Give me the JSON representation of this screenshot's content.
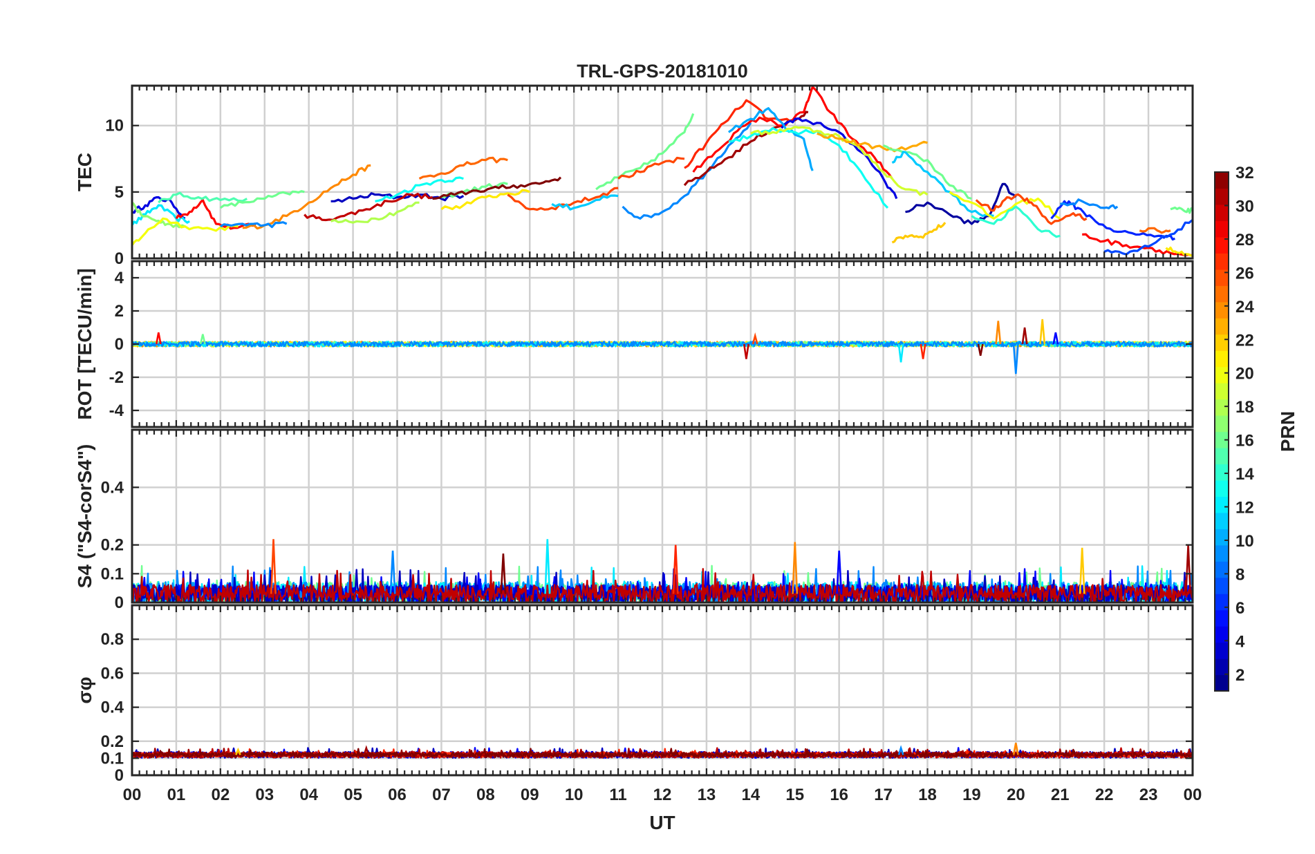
{
  "chart_data": {
    "type": "line",
    "title": "TRL-GPS-20181010",
    "xlabel": "UT",
    "xlim": [
      0,
      24
    ],
    "x_ticks": [
      "00",
      "01",
      "02",
      "03",
      "04",
      "05",
      "06",
      "07",
      "08",
      "09",
      "10",
      "11",
      "12",
      "13",
      "14",
      "15",
      "16",
      "17",
      "18",
      "19",
      "20",
      "21",
      "22",
      "23",
      "00"
    ],
    "grid": true,
    "colorbar": {
      "label": "PRN",
      "colormap": "jet",
      "range": [
        1,
        32
      ],
      "ticks": [
        "2",
        "4",
        "6",
        "8",
        "10",
        "12",
        "14",
        "16",
        "18",
        "20",
        "22",
        "24",
        "26",
        "28",
        "30",
        "32"
      ]
    },
    "panels": [
      {
        "ylabel": "TEC",
        "ylim": [
          0,
          13
        ],
        "y_ticks": [
          "0",
          "5",
          "10"
        ],
        "series": [
          {
            "prn": 4,
            "x": [
              0,
              0.3,
              0.6,
              0.9,
              1.2
            ],
            "y": [
              3.5,
              4,
              4.6,
              4.2,
              3
            ]
          },
          {
            "prn": 12,
            "x": [
              0,
              0.3,
              0.6,
              1,
              1.3
            ],
            "y": [
              2.5,
              3.3,
              4,
              3,
              2.8
            ]
          },
          {
            "prn": 17,
            "x": [
              0,
              0.2,
              0.5,
              0.8,
              1.2
            ],
            "y": [
              4.2,
              3.3,
              2.9,
              2.6,
              2.4
            ]
          },
          {
            "prn": 28,
            "x": [
              1,
              1.3,
              1.6,
              1.9,
              2.3,
              2.8
            ],
            "y": [
              3,
              3.5,
              4.4,
              2.6,
              2.3,
              2.5
            ]
          },
          {
            "prn": 20,
            "x": [
              0,
              0.3,
              0.7,
              1.2,
              1.8,
              2.4
            ],
            "y": [
              1,
              1.9,
              3,
              2.4,
              2.2,
              2.4
            ]
          },
          {
            "prn": 15,
            "x": [
              0.6,
              1,
              1.5,
              2,
              2.6
            ],
            "y": [
              4.2,
              4.8,
              4.6,
              4.4,
              4.5
            ]
          },
          {
            "prn": 16,
            "x": [
              2,
              2.5,
              3,
              3.5,
              3.9
            ],
            "y": [
              3.8,
              4.2,
              4.5,
              4.9,
              5
            ]
          },
          {
            "prn": 24,
            "x": [
              2.5,
              3,
              3.5,
              4,
              4.5,
              5,
              5.4
            ],
            "y": [
              2.3,
              2.5,
              3.2,
              4.2,
              5.3,
              6.3,
              7
            ]
          },
          {
            "prn": 9,
            "x": [
              2,
              2.5,
              3,
              3.5
            ],
            "y": [
              2.4,
              2.6,
              2.5,
              2.6
            ]
          },
          {
            "prn": 3,
            "x": [
              4.5,
              5,
              5.5,
              6,
              6.5,
              7,
              7.5
            ],
            "y": [
              4.3,
              4.5,
              4.8,
              4.6,
              4.8,
              4.5,
              4.7
            ]
          },
          {
            "prn": 30,
            "x": [
              3.9,
              4.3,
              4.8,
              5.3,
              5.8,
              6.3,
              6.8
            ],
            "y": [
              3.3,
              2.9,
              3.2,
              3.7,
              4.3,
              4.8,
              4.6
            ]
          },
          {
            "prn": 18,
            "x": [
              4.5,
              5,
              5.5,
              6,
              6.5
            ],
            "y": [
              2.8,
              2.7,
              3,
              3.5,
              4.2
            ]
          },
          {
            "prn": 13,
            "x": [
              5.5,
              6,
              6.5,
              7,
              7.5
            ],
            "y": [
              4.3,
              4.8,
              5.5,
              5.9,
              6
            ]
          },
          {
            "prn": 25,
            "x": [
              6.5,
              7,
              7.5,
              8,
              8.5
            ],
            "y": [
              6,
              6.4,
              7,
              7.4,
              7.4
            ]
          },
          {
            "prn": 16,
            "x": [
              7,
              7.5,
              8,
              8.5
            ],
            "y": [
              4.6,
              5,
              5.4,
              5.6
            ]
          },
          {
            "prn": 32,
            "x": [
              6.8,
              7.3,
              7.8,
              8.3,
              8.8,
              9.3,
              9.7
            ],
            "y": [
              4.5,
              4.8,
              5.1,
              5.3,
              5.5,
              5.7,
              6.1
            ]
          },
          {
            "prn": 21,
            "x": [
              7,
              7.5,
              8,
              8.5,
              9
            ],
            "y": [
              3.7,
              4,
              4.6,
              4.9,
              5
            ]
          },
          {
            "prn": 26,
            "x": [
              8.5,
              9,
              9.5,
              10,
              10.5,
              11
            ],
            "y": [
              4.8,
              3.7,
              3.8,
              4.2,
              4.6,
              5.3
            ]
          },
          {
            "prn": 11,
            "x": [
              9.5,
              10,
              10.5,
              11
            ],
            "y": [
              4.1,
              3.8,
              4.4,
              4.7
            ]
          },
          {
            "prn": 16,
            "x": [
              10.5,
              11,
              11.5,
              12,
              12.5,
              12.7
            ],
            "y": [
              5.2,
              6.1,
              6.8,
              7.9,
              9.5,
              10.9
            ]
          },
          {
            "prn": 9,
            "x": [
              11.1,
              11.5,
              12,
              12.5,
              13,
              13.5,
              14
            ],
            "y": [
              3.9,
              3,
              3.5,
              4.7,
              6.5,
              8.5,
              10.2
            ]
          },
          {
            "prn": 26,
            "x": [
              11,
              11.5,
              12,
              12.5
            ],
            "y": [
              6,
              6.5,
              7.2,
              7.5
            ]
          },
          {
            "prn": 31,
            "x": [
              12.5,
              13,
              13.5,
              14,
              14.5,
              15,
              15.3
            ],
            "y": [
              5.5,
              6.5,
              7.6,
              8.8,
              9.8,
              10.4,
              11
            ]
          },
          {
            "prn": 28,
            "x": [
              12.7,
              13.2,
              13.7,
              14.2,
              14.7,
              15.2,
              15.4,
              15.8,
              16.3,
              16.8,
              17.2
            ],
            "y": [
              6.5,
              8,
              9.6,
              10.6,
              10,
              11,
              12.9,
              11,
              9,
              7.6,
              6
            ]
          },
          {
            "prn": 27,
            "x": [
              12.5,
              13,
              13.4,
              13.9,
              14.4,
              14.9
            ],
            "y": [
              6.8,
              8.7,
              10.2,
              11.9,
              10.5,
              10.3
            ]
          },
          {
            "prn": 4,
            "x": [
              14.7,
              15,
              15.5,
              16,
              16.5,
              17,
              17.3
            ],
            "y": [
              9.8,
              10.5,
              10.2,
              9.5,
              8,
              6,
              4.5
            ]
          },
          {
            "prn": 10,
            "x": [
              13.5,
              14,
              14.4,
              14.8,
              15.2,
              15.4
            ],
            "y": [
              9.5,
              10.5,
              11.3,
              9.7,
              9,
              6.6
            ]
          },
          {
            "prn": 13,
            "x": [
              13.5,
              14,
              14.5,
              15,
              15.5,
              16,
              16.5,
              17.1
            ],
            "y": [
              8.8,
              9.2,
              9.8,
              9.5,
              9.6,
              8.5,
              6.5,
              3.8
            ]
          },
          {
            "prn": 19,
            "x": [
              14,
              14.5,
              15,
              15.5,
              16,
              16.5,
              17,
              17.5,
              18
            ],
            "y": [
              9.4,
              9.5,
              9.9,
              9.6,
              9.2,
              8.2,
              6.5,
              5.2,
              4.8
            ]
          },
          {
            "prn": 23,
            "x": [
              15.5,
              16,
              16.5,
              17,
              17.5,
              18
            ],
            "y": [
              9.4,
              9,
              8.6,
              8.3,
              8.2,
              8.7
            ]
          },
          {
            "prn": 16,
            "x": [
              17,
              17.5,
              18,
              18.5,
              19
            ],
            "y": [
              8.5,
              8,
              7.4,
              5.5,
              4.5
            ]
          },
          {
            "prn": 22,
            "x": [
              17.2,
              17.5,
              17.8,
              18.1,
              18.4
            ],
            "y": [
              1.2,
              1.7,
              1.6,
              2,
              2.7
            ]
          },
          {
            "prn": 2,
            "x": [
              17.5,
              18,
              18.5,
              19,
              19.4,
              19.7,
              20
            ],
            "y": [
              3.5,
              4.2,
              3.3,
              2.6,
              3.2,
              5.6,
              4.6
            ]
          },
          {
            "prn": 11,
            "x": [
              17.2,
              17.5,
              18,
              18.5,
              19,
              19.5
            ],
            "y": [
              7.2,
              8,
              6.5,
              5,
              3.5,
              3.2
            ]
          },
          {
            "prn": 20,
            "x": [
              18.5,
              19,
              19.5,
              20,
              20.5,
              21
            ],
            "y": [
              5,
              4.2,
              3,
              4.1,
              4.5,
              3
            ]
          },
          {
            "prn": 14,
            "x": [
              19,
              19.5,
              20,
              20.5,
              21
            ],
            "y": [
              3.2,
              2.6,
              3.9,
              2.2,
              1.7
            ]
          },
          {
            "prn": 26,
            "x": [
              19.1,
              19.5,
              19.8,
              20.1,
              20.4,
              20.8,
              21.3,
              21.6
            ],
            "y": [
              4.4,
              3.6,
              4.6,
              4.7,
              4,
              2.6,
              3.4,
              3
            ]
          },
          {
            "prn": 6,
            "x": [
              20.8,
              21.1,
              21.4,
              21.8,
              22.3,
              22.8,
              23.3,
              23.6
            ],
            "y": [
              3,
              4.3,
              3.8,
              2.8,
              2,
              1.8,
              1.7,
              1.5
            ]
          },
          {
            "prn": 9,
            "x": [
              21,
              21.5,
              22,
              22.3
            ],
            "y": [
              4.1,
              4.3,
              3.8,
              3.9
            ]
          },
          {
            "prn": 28,
            "x": [
              21.5,
              22,
              22.5,
              23,
              23.5,
              24
            ],
            "y": [
              1.8,
              1.3,
              1,
              0.8,
              0.4,
              0.2
            ]
          },
          {
            "prn": 7,
            "x": [
              22,
              22.5,
              23,
              23.5,
              24
            ],
            "y": [
              0.5,
              0.3,
              0.9,
              1.8,
              2.9
            ]
          },
          {
            "prn": 25,
            "x": [
              22.8,
              23.2,
              23.5
            ],
            "y": [
              2.1,
              2.1,
              2.1
            ]
          },
          {
            "prn": 21,
            "x": [
              23.4,
              23.7,
              24
            ],
            "y": [
              0.8,
              0.4,
              0.2
            ]
          },
          {
            "prn": 16,
            "x": [
              23.5,
              23.8,
              24
            ],
            "y": [
              3.7,
              3.6,
              3.6
            ]
          }
        ]
      },
      {
        "ylabel": "ROT [TECU/min]",
        "ylim": [
          -5,
          5
        ],
        "y_ticks": [
          "-4",
          "-2",
          "0",
          "2",
          "4"
        ],
        "noise_band": {
          "center": 0,
          "amplitude": 0.15
        },
        "spikes": [
          {
            "x": 0.6,
            "y": 0.7
          },
          {
            "x": 1.6,
            "y": 0.6
          },
          {
            "x": 13.9,
            "y": -0.9
          },
          {
            "x": 14.1,
            "y": 0.5
          },
          {
            "x": 17.4,
            "y": -1.1
          },
          {
            "x": 17.9,
            "y": -0.9
          },
          {
            "x": 19.6,
            "y": 1.4
          },
          {
            "x": 20.0,
            "y": -1.8
          },
          {
            "x": 20.2,
            "y": 1.0
          },
          {
            "x": 20.6,
            "y": 1.5
          },
          {
            "x": 20.9,
            "y": 0.7
          },
          {
            "x": 19.2,
            "y": -0.7
          }
        ]
      },
      {
        "ylabel": "S4 (\"S4-corS4\")",
        "ylim": [
          0,
          0.6
        ],
        "y_ticks": [
          "0",
          "0.1",
          "0.2",
          "0.4"
        ],
        "noise_band": {
          "base": 0.03,
          "amplitude": 0.07
        },
        "spikes": [
          {
            "x": 3.2,
            "y": 0.22
          },
          {
            "x": 9.4,
            "y": 0.22
          },
          {
            "x": 12.3,
            "y": 0.2
          },
          {
            "x": 15.0,
            "y": 0.21
          },
          {
            "x": 5.9,
            "y": 0.18
          },
          {
            "x": 23.9,
            "y": 0.2
          },
          {
            "x": 21.5,
            "y": 0.19
          },
          {
            "x": 16.0,
            "y": 0.18
          },
          {
            "x": 8.4,
            "y": 0.17
          }
        ]
      },
      {
        "ylabel": "σφ",
        "ylim": [
          0,
          1
        ],
        "y_ticks": [
          "0",
          "0.1",
          "0.2",
          "0.4",
          "0.6",
          "0.8"
        ],
        "noise_band": {
          "base": 0.12,
          "amplitude": 0.03
        },
        "spikes": [
          {
            "x": 20.0,
            "y": 0.19
          },
          {
            "x": 17.4,
            "y": 0.16
          },
          {
            "x": 5.3,
            "y": 0.16
          },
          {
            "x": 2.4,
            "y": 0.15
          }
        ]
      }
    ]
  }
}
